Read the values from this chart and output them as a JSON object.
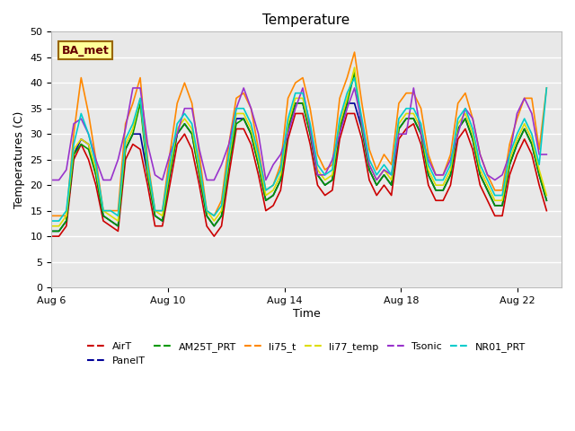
{
  "title": "Temperature",
  "xlabel": "Time",
  "ylabel": "Temperatures (C)",
  "ylim": [
    0,
    50
  ],
  "yticks": [
    0,
    5,
    10,
    15,
    20,
    25,
    30,
    35,
    40,
    45,
    50
  ],
  "xlim_days": [
    0,
    17.5
  ],
  "start_date": "Aug 6",
  "x_tick_labels": [
    "Aug 6",
    "Aug 10",
    "Aug 14",
    "Aug 18",
    "Aug 22"
  ],
  "x_tick_positions": [
    0,
    4,
    8,
    12,
    16
  ],
  "site_label": "BA_met",
  "plot_bg_color": "#e8e8e8",
  "fig_bg_color": "#ffffff",
  "grid_color": "#ffffff",
  "series": [
    {
      "name": "AirT",
      "color": "#cc0000",
      "lw": 1.2,
      "values": [
        10,
        10,
        12,
        25,
        28,
        25,
        20,
        13,
        12,
        11,
        25,
        28,
        27,
        20,
        12,
        12,
        20,
        28,
        30,
        27,
        20,
        12,
        10,
        12,
        22,
        31,
        31,
        28,
        22,
        15,
        16,
        19,
        29,
        34,
        34,
        28,
        20,
        18,
        19,
        29,
        34,
        34,
        29,
        21,
        18,
        20,
        18,
        29,
        31,
        32,
        28,
        20,
        17,
        17,
        20,
        29,
        31,
        27,
        20,
        17,
        14,
        14,
        22,
        26,
        29,
        26,
        20,
        15
      ]
    },
    {
      "name": "PanelT",
      "color": "#000099",
      "lw": 1.2,
      "values": [
        11,
        11,
        13,
        26,
        29,
        28,
        22,
        14,
        13,
        12,
        27,
        30,
        30,
        22,
        14,
        13,
        22,
        30,
        32,
        30,
        22,
        14,
        12,
        14,
        24,
        33,
        33,
        30,
        24,
        17,
        18,
        21,
        31,
        36,
        36,
        30,
        22,
        20,
        21,
        31,
        36,
        36,
        31,
        23,
        20,
        22,
        20,
        31,
        33,
        33,
        30,
        22,
        19,
        19,
        22,
        31,
        33,
        29,
        22,
        19,
        16,
        16,
        24,
        28,
        31,
        28,
        22,
        17
      ]
    },
    {
      "name": "AM25T_PRT",
      "color": "#009900",
      "lw": 1.2,
      "values": [
        11,
        11,
        13,
        26,
        28,
        27,
        22,
        14,
        13,
        12,
        27,
        30,
        36,
        22,
        14,
        13,
        22,
        30,
        32,
        30,
        22,
        14,
        12,
        14,
        24,
        32,
        33,
        30,
        24,
        17,
        18,
        21,
        31,
        36,
        36,
        30,
        22,
        20,
        21,
        31,
        36,
        42,
        31,
        23,
        20,
        22,
        20,
        31,
        33,
        33,
        30,
        22,
        19,
        19,
        22,
        31,
        33,
        29,
        22,
        19,
        16,
        16,
        24,
        28,
        31,
        28,
        22,
        17
      ]
    },
    {
      "name": "li75_t",
      "color": "#ff8800",
      "lw": 1.2,
      "values": [
        14,
        14,
        14,
        30,
        41,
        34,
        25,
        15,
        15,
        15,
        32,
        36,
        41,
        25,
        15,
        15,
        26,
        36,
        40,
        36,
        26,
        15,
        14,
        17,
        28,
        37,
        38,
        35,
        27,
        19,
        20,
        24,
        37,
        40,
        41,
        35,
        26,
        23,
        24,
        37,
        41,
        46,
        36,
        27,
        23,
        26,
        24,
        36,
        38,
        38,
        35,
        26,
        22,
        22,
        26,
        36,
        38,
        33,
        26,
        22,
        19,
        19,
        28,
        33,
        37,
        37,
        27,
        39
      ]
    },
    {
      "name": "li77_temp",
      "color": "#dddd00",
      "lw": 1.2,
      "values": [
        12,
        12,
        14,
        27,
        29,
        28,
        23,
        15,
        14,
        13,
        28,
        31,
        37,
        23,
        15,
        14,
        23,
        31,
        33,
        31,
        23,
        15,
        13,
        15,
        25,
        34,
        34,
        31,
        25,
        18,
        19,
        22,
        32,
        37,
        37,
        31,
        23,
        21,
        22,
        32,
        37,
        43,
        32,
        24,
        21,
        23,
        21,
        32,
        34,
        34,
        31,
        23,
        20,
        20,
        23,
        32,
        34,
        30,
        23,
        20,
        17,
        17,
        25,
        29,
        32,
        29,
        23,
        18
      ]
    },
    {
      "name": "Tsonic",
      "color": "#9933cc",
      "lw": 1.2,
      "values": [
        21,
        21,
        23,
        32,
        33,
        30,
        25,
        21,
        21,
        25,
        31,
        39,
        39,
        28,
        22,
        21,
        26,
        30,
        35,
        35,
        27,
        21,
        21,
        24,
        28,
        35,
        39,
        35,
        30,
        21,
        24,
        26,
        30,
        35,
        39,
        31,
        22,
        22,
        25,
        30,
        35,
        39,
        32,
        24,
        21,
        23,
        22,
        30,
        30,
        39,
        30,
        25,
        22,
        22,
        25,
        30,
        35,
        33,
        26,
        22,
        21,
        22,
        26,
        34,
        37,
        34,
        26,
        26
      ]
    },
    {
      "name": "NR01_PRT",
      "color": "#00cccc",
      "lw": 1.2,
      "values": [
        13,
        13,
        15,
        28,
        34,
        30,
        24,
        15,
        15,
        14,
        29,
        32,
        37,
        24,
        15,
        15,
        24,
        32,
        34,
        32,
        24,
        15,
        14,
        16,
        26,
        35,
        35,
        32,
        26,
        19,
        20,
        23,
        33,
        38,
        38,
        32,
        24,
        22,
        23,
        33,
        38,
        41,
        33,
        25,
        22,
        24,
        22,
        33,
        35,
        35,
        32,
        24,
        21,
        21,
        24,
        33,
        35,
        31,
        24,
        21,
        18,
        18,
        26,
        30,
        33,
        30,
        24,
        39
      ]
    }
  ],
  "legend_items": [
    {
      "name": "AirT",
      "color": "#cc0000"
    },
    {
      "name": "PanelT",
      "color": "#000099"
    },
    {
      "name": "AM25T_PRT",
      "color": "#009900"
    },
    {
      "name": "li75_t",
      "color": "#ff8800"
    },
    {
      "name": "li77_temp",
      "color": "#dddd00"
    },
    {
      "name": "Tsonic",
      "color": "#9933cc"
    },
    {
      "name": "NR01_PRT",
      "color": "#00cccc"
    }
  ],
  "site_label_bg": "#ffff99",
  "site_label_border": "#996600",
  "site_label_text_color": "#660000"
}
